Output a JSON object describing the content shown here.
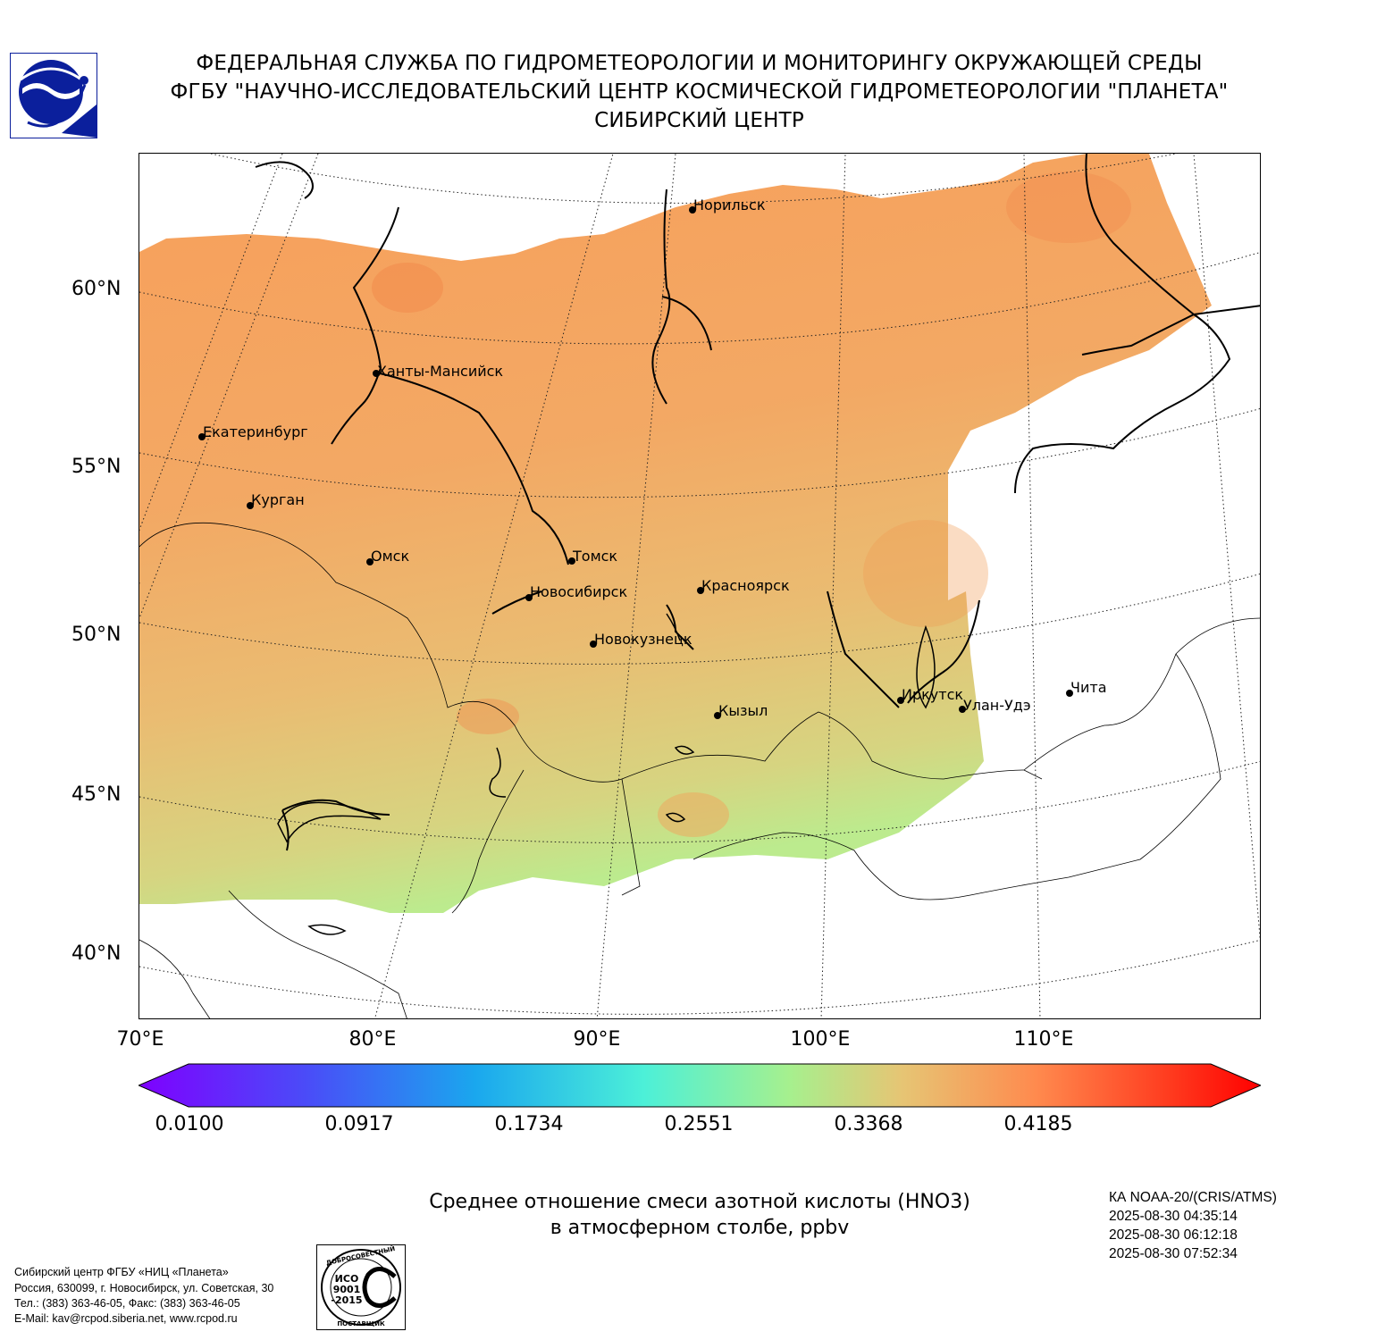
{
  "header": {
    "line1": "ФЕДЕРАЛЬНАЯ СЛУЖБА ПО ГИДРОМЕТЕОРОЛОГИИ И МОНИТОРИНГУ ОКРУЖАЮЩЕЙ СРЕДЫ",
    "line2": "ФГБУ \"НАУЧНО-ИССЛЕДОВАТЕЛЬСКИЙ ЦЕНТР КОСМИЧЕСКОЙ ГИДРОМЕТЕОРОЛОГИИ \"ПЛАНЕТА\"",
    "line3": "СИБИРСКИЙ ЦЕНТР"
  },
  "logo": {
    "icon": "roshydromet-logo-icon",
    "color": "#0b1f9c"
  },
  "map": {
    "lat_labels": [
      "60°N",
      "55°N",
      "50°N",
      "45°N",
      "40°N"
    ],
    "lon_labels": [
      "70°E",
      "80°E",
      "90°E",
      "100°E",
      "110°E"
    ],
    "cities": [
      "Норильск",
      "Ханты-Мансийск",
      "Екатеринбург",
      "Курган",
      "Омск",
      "Томск",
      "Новосибирск",
      "Красноярск",
      "Новокузнецк",
      "Иркутск",
      "Улан-Удэ",
      "Чита",
      "Кызыл"
    ],
    "field_colors": {
      "high": "#f79a52",
      "mid": "#e9b86a",
      "low": "#cfd97c",
      "min": "#a6f08e"
    }
  },
  "colorbar": {
    "tick_labels": [
      "0.0100",
      "0.0917",
      "0.1734",
      "0.2551",
      "0.3368",
      "0.4185"
    ],
    "min_color": "#7f00ff",
    "max_color": "#ff0000"
  },
  "caption": {
    "line1": "Среднее отношение смеси азотной кислоты (HNO3)",
    "line2": "в атмосферном столбе, ppbv"
  },
  "satellite": {
    "line1": "КА NOAA-20/(CRIS/ATMS)",
    "line2": "2025-08-30 04:35:14",
    "line3": "2025-08-30 06:12:18",
    "line4": "2025-08-30 07:52:34"
  },
  "footer": {
    "line1": "Сибирский центр ФГБУ «НИЦ «Планета»",
    "line2": "Россия, 630099, г. Новосибирск, ул. Советская, 30",
    "line3": "Тел.: (383) 363-46-05, Факс: (383) 363-46-05",
    "line4": "E-Mail: kav@rcpod.siberia.net, www.rcpod.ru"
  },
  "iso_stamp": {
    "top_text": "ДОБРОСОВЕСТНЫЙ",
    "line1": "ИСО",
    "line2": "9001",
    "line3": "-2015",
    "bottom_text": "ПОСТАВЩИК"
  }
}
